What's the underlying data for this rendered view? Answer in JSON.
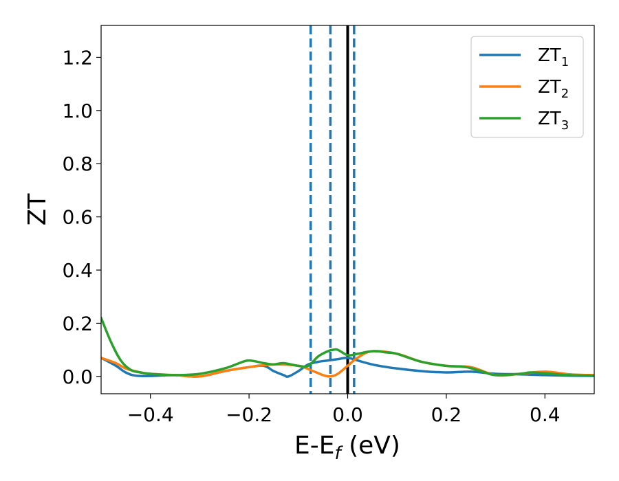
{
  "chart_data": {
    "type": "line",
    "xlabel": "E-E",
    "xlabel_sub": "f",
    "xlabel_unit": " (eV)",
    "ylabel": "ZT",
    "xlim": [
      -0.5,
      0.5
    ],
    "ylim": [
      -0.065,
      1.32
    ],
    "xticks": [
      -0.4,
      -0.2,
      0.0,
      0.2,
      0.4
    ],
    "xtick_labels": [
      "−0.4",
      "−0.2",
      "0.0",
      "0.2",
      "0.4"
    ],
    "yticks": [
      0.0,
      0.2,
      0.4,
      0.6,
      0.8,
      1.0,
      1.2
    ],
    "ytick_labels": [
      "0.0",
      "0.2",
      "0.4",
      "0.6",
      "0.8",
      "1.0",
      "1.2"
    ],
    "grid": false,
    "legend_position": "top-right",
    "series": [
      {
        "name": "ZT",
        "subscript": "1",
        "color": "#1f77b4",
        "x": [
          -0.5,
          -0.47,
          -0.45,
          -0.43,
          -0.4,
          -0.35,
          -0.3,
          -0.25,
          -0.2,
          -0.17,
          -0.15,
          -0.13,
          -0.12,
          -0.1,
          -0.08,
          -0.06,
          -0.04,
          -0.02,
          0.0,
          0.02,
          0.05,
          0.08,
          0.1,
          0.15,
          0.2,
          0.25,
          0.3,
          0.35,
          0.4,
          0.45,
          0.5
        ],
        "y": [
          0.07,
          0.04,
          0.015,
          0.003,
          0.002,
          0.005,
          0.0,
          0.02,
          0.035,
          0.04,
          0.02,
          0.005,
          0.0,
          0.02,
          0.045,
          0.055,
          0.06,
          0.065,
          0.07,
          0.06,
          0.045,
          0.035,
          0.03,
          0.02,
          0.015,
          0.018,
          0.01,
          0.008,
          0.005,
          0.003,
          0.002
        ]
      },
      {
        "name": "ZT",
        "subscript": "2",
        "color": "#ff7f0e",
        "x": [
          -0.5,
          -0.47,
          -0.45,
          -0.42,
          -0.4,
          -0.35,
          -0.3,
          -0.25,
          -0.2,
          -0.15,
          -0.1,
          -0.07,
          -0.05,
          -0.035,
          -0.02,
          0.0,
          0.02,
          0.05,
          0.1,
          0.15,
          0.2,
          0.25,
          0.3,
          0.35,
          0.4,
          0.45,
          0.5
        ],
        "y": [
          0.07,
          0.05,
          0.03,
          0.015,
          0.01,
          0.005,
          0.0,
          0.02,
          0.035,
          0.045,
          0.04,
          0.02,
          0.005,
          0.0,
          0.01,
          0.04,
          0.07,
          0.095,
          0.085,
          0.055,
          0.04,
          0.035,
          0.005,
          0.01,
          0.018,
          0.008,
          0.005
        ]
      },
      {
        "name": "ZT",
        "subscript": "3",
        "color": "#2ca02c",
        "x": [
          -0.5,
          -0.48,
          -0.46,
          -0.44,
          -0.42,
          -0.4,
          -0.35,
          -0.3,
          -0.25,
          -0.22,
          -0.2,
          -0.17,
          -0.15,
          -0.13,
          -0.1,
          -0.08,
          -0.06,
          -0.04,
          -0.03,
          -0.02,
          0.0,
          0.02,
          0.05,
          0.08,
          0.1,
          0.15,
          0.2,
          0.24,
          0.27,
          0.3,
          0.35,
          0.37,
          0.4,
          0.45,
          0.5
        ],
        "y": [
          0.22,
          0.13,
          0.06,
          0.025,
          0.015,
          0.01,
          0.005,
          0.01,
          0.03,
          0.05,
          0.06,
          0.05,
          0.045,
          0.05,
          0.04,
          0.04,
          0.075,
          0.095,
          0.1,
          0.1,
          0.08,
          0.085,
          0.095,
          0.09,
          0.085,
          0.055,
          0.04,
          0.035,
          0.02,
          0.005,
          0.01,
          0.015,
          0.012,
          0.005,
          0.003
        ]
      }
    ],
    "vertical_lines": [
      {
        "x": -0.075,
        "style": "dashed",
        "color": "#1f77b4"
      },
      {
        "x": -0.035,
        "style": "dashed",
        "color": "#1f77b4"
      },
      {
        "x": 0.0,
        "style": "solid",
        "color": "#000000"
      },
      {
        "x": 0.013,
        "style": "dashed",
        "color": "#1f77b4"
      }
    ]
  }
}
